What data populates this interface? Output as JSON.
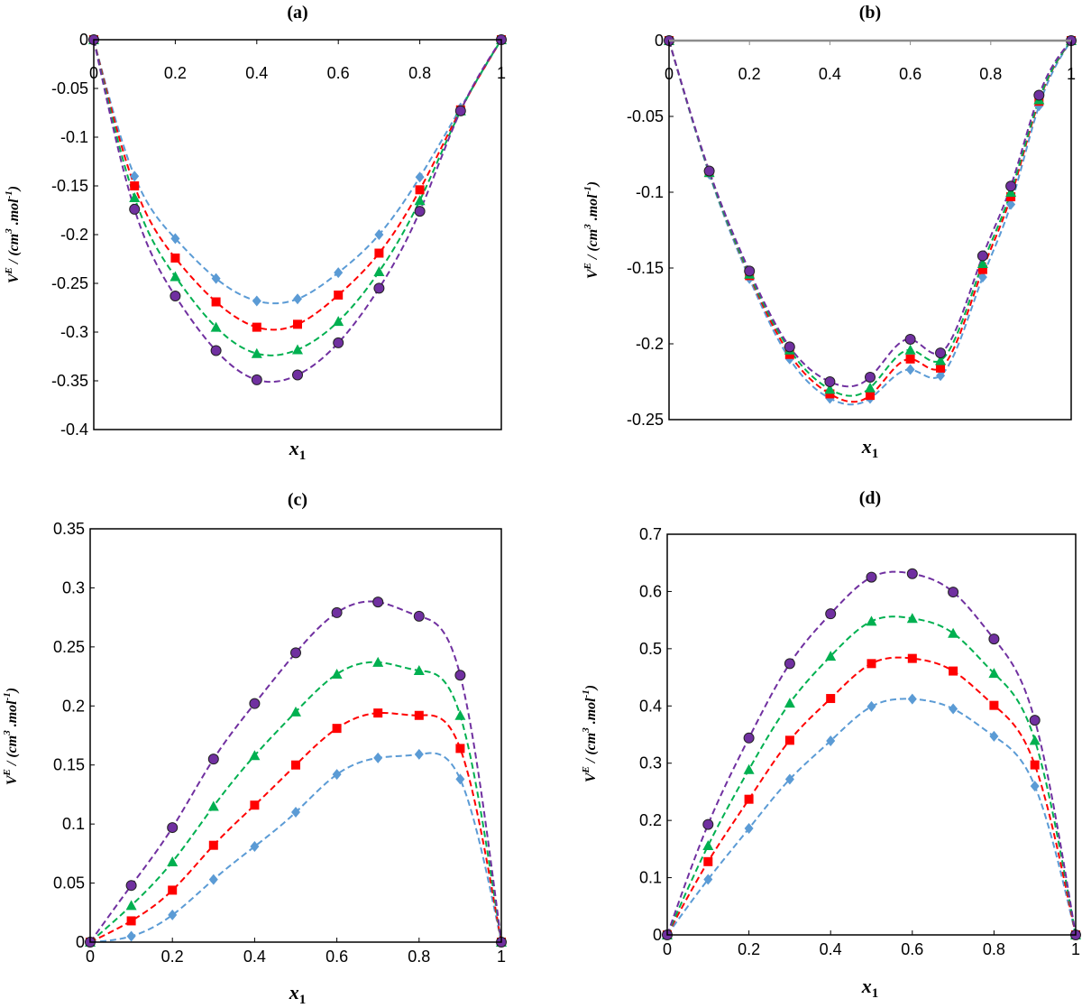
{
  "chart_data": [
    {
      "panel": "(a)",
      "type": "scatter",
      "xlabel": "x1",
      "ylabel": "VE / (cm3 .mol-1)",
      "xlim": [
        0,
        1
      ],
      "ylim": [
        -0.4,
        0
      ],
      "xticks": [
        "0",
        "0.2",
        "0.4",
        "0.6",
        "0.8",
        "1"
      ],
      "yticks": [
        "0",
        "-0.05",
        "-0.1",
        "-0.15",
        "-0.2",
        "-0.25",
        "-0.3",
        "-0.35",
        "-0.4"
      ],
      "grid": false,
      "series": [
        {
          "marker": "diamond",
          "color": "#5B9BD5",
          "x": [
            0,
            0.1,
            0.2,
            0.3,
            0.4,
            0.5,
            0.6,
            0.7,
            0.8,
            0.9,
            1
          ],
          "y": [
            0,
            -0.14,
            -0.204,
            -0.245,
            -0.268,
            -0.266,
            -0.239,
            -0.2,
            -0.141,
            -0.07,
            0
          ]
        },
        {
          "marker": "square",
          "color": "#FF0000",
          "x": [
            0,
            0.1,
            0.2,
            0.3,
            0.4,
            0.5,
            0.6,
            0.7,
            0.8,
            0.9,
            1
          ],
          "y": [
            0,
            -0.15,
            -0.224,
            -0.269,
            -0.295,
            -0.292,
            -0.262,
            -0.219,
            -0.154,
            -0.072,
            0
          ]
        },
        {
          "marker": "triangle",
          "color": "#00B050",
          "x": [
            0,
            0.1,
            0.2,
            0.3,
            0.4,
            0.5,
            0.6,
            0.7,
            0.8,
            0.9,
            1
          ],
          "y": [
            0,
            -0.162,
            -0.243,
            -0.295,
            -0.322,
            -0.318,
            -0.289,
            -0.238,
            -0.165,
            -0.073,
            0
          ]
        },
        {
          "marker": "circle",
          "color": "#7030A0",
          "x": [
            0,
            0.1,
            0.2,
            0.3,
            0.4,
            0.5,
            0.6,
            0.7,
            0.8,
            0.9,
            1
          ],
          "y": [
            0,
            -0.174,
            -0.263,
            -0.319,
            -0.349,
            -0.344,
            -0.311,
            -0.255,
            -0.176,
            -0.073,
            0
          ]
        }
      ]
    },
    {
      "panel": "(b)",
      "type": "scatter",
      "xlabel": "x1",
      "ylabel": "VE / (cm3 .mol-1)",
      "xlim": [
        0,
        1
      ],
      "ylim": [
        -0.25,
        0
      ],
      "xticks": [
        "0",
        "0.2",
        "0.4",
        "0.6",
        "0.8",
        "1"
      ],
      "yticks": [
        "0",
        "-0.05",
        "-0.1",
        "-0.15",
        "-0.2",
        "-0.25"
      ],
      "grid": false,
      "series": [
        {
          "marker": "diamond",
          "color": "#5B9BD5",
          "x": [
            0,
            0.1,
            0.2,
            0.3,
            0.4,
            0.5,
            0.6,
            0.675,
            0.78,
            0.85,
            0.92,
            1
          ],
          "y": [
            0,
            -0.088,
            -0.157,
            -0.21,
            -0.236,
            -0.236,
            -0.217,
            -0.221,
            -0.156,
            -0.108,
            -0.043,
            0
          ]
        },
        {
          "marker": "square",
          "color": "#FF0000",
          "x": [
            0,
            0.1,
            0.2,
            0.3,
            0.4,
            0.5,
            0.6,
            0.675,
            0.78,
            0.85,
            0.92,
            1
          ],
          "y": [
            0,
            -0.087,
            -0.155,
            -0.207,
            -0.233,
            -0.234,
            -0.21,
            -0.216,
            -0.151,
            -0.103,
            -0.04,
            0
          ]
        },
        {
          "marker": "triangle",
          "color": "#00B050",
          "x": [
            0,
            0.1,
            0.2,
            0.3,
            0.4,
            0.5,
            0.6,
            0.675,
            0.78,
            0.85,
            0.92,
            1
          ],
          "y": [
            0,
            -0.087,
            -0.154,
            -0.204,
            -0.23,
            -0.229,
            -0.204,
            -0.211,
            -0.147,
            -0.1,
            -0.039,
            0
          ]
        },
        {
          "marker": "circle",
          "color": "#7030A0",
          "x": [
            0,
            0.1,
            0.2,
            0.3,
            0.4,
            0.5,
            0.6,
            0.675,
            0.78,
            0.85,
            0.92,
            1
          ],
          "y": [
            0,
            -0.086,
            -0.152,
            -0.202,
            -0.225,
            -0.222,
            -0.197,
            -0.206,
            -0.142,
            -0.096,
            -0.036,
            0
          ]
        }
      ]
    },
    {
      "panel": "(c)",
      "type": "scatter",
      "xlabel": "x1",
      "ylabel": "VE / (cm3 .mol-1)",
      "xlim": [
        0,
        1
      ],
      "ylim": [
        0,
        0.35
      ],
      "xticks": [
        "0",
        "0.2",
        "0.4",
        "0.6",
        "0.8",
        "1"
      ],
      "yticks": [
        "0",
        "0.05",
        "0.1",
        "0.15",
        "0.2",
        "0.25",
        "0.3",
        "0.35"
      ],
      "grid": false,
      "series": [
        {
          "marker": "diamond",
          "color": "#5B9BD5",
          "x": [
            0,
            0.1,
            0.2,
            0.3,
            0.4,
            0.5,
            0.6,
            0.7,
            0.8,
            0.9,
            1
          ],
          "y": [
            0,
            0.005,
            0.023,
            0.053,
            0.081,
            0.11,
            0.142,
            0.156,
            0.159,
            0.138,
            0
          ]
        },
        {
          "marker": "square",
          "color": "#FF0000",
          "x": [
            0,
            0.1,
            0.2,
            0.3,
            0.4,
            0.5,
            0.6,
            0.7,
            0.8,
            0.9,
            1
          ],
          "y": [
            0,
            0.018,
            0.044,
            0.082,
            0.116,
            0.15,
            0.181,
            0.194,
            0.192,
            0.164,
            0
          ]
        },
        {
          "marker": "triangle",
          "color": "#00B050",
          "x": [
            0,
            0.1,
            0.2,
            0.3,
            0.4,
            0.5,
            0.6,
            0.7,
            0.8,
            0.9,
            1
          ],
          "y": [
            0,
            0.031,
            0.068,
            0.115,
            0.158,
            0.195,
            0.227,
            0.237,
            0.23,
            0.192,
            0
          ]
        },
        {
          "marker": "circle",
          "color": "#7030A0",
          "x": [
            0,
            0.1,
            0.2,
            0.3,
            0.4,
            0.5,
            0.6,
            0.7,
            0.8,
            0.9,
            1
          ],
          "y": [
            0,
            0.048,
            0.097,
            0.155,
            0.202,
            0.245,
            0.279,
            0.288,
            0.276,
            0.226,
            0
          ]
        }
      ]
    },
    {
      "panel": "(d)",
      "type": "scatter",
      "xlabel": "x1",
      "ylabel": "VE / (cm3 .mol-1)",
      "xlim": [
        0,
        1
      ],
      "ylim": [
        0,
        0.7
      ],
      "xticks": [
        "0",
        "0.2",
        "0.4",
        "0.6",
        "0.8",
        "1"
      ],
      "yticks": [
        "0",
        "0.1",
        "0.2",
        "0.3",
        "0.4",
        "0.5",
        "0.6",
        "0.7"
      ],
      "grid": false,
      "series": [
        {
          "marker": "diamond",
          "color": "#5B9BD5",
          "x": [
            0,
            0.1,
            0.2,
            0.3,
            0.4,
            0.5,
            0.6,
            0.7,
            0.8,
            0.9,
            1
          ],
          "y": [
            0,
            0.097,
            0.186,
            0.272,
            0.339,
            0.399,
            0.412,
            0.395,
            0.347,
            0.26,
            0
          ]
        },
        {
          "marker": "square",
          "color": "#FF0000",
          "x": [
            0,
            0.1,
            0.2,
            0.3,
            0.4,
            0.5,
            0.6,
            0.7,
            0.8,
            0.9,
            1
          ],
          "y": [
            0,
            0.128,
            0.237,
            0.34,
            0.413,
            0.474,
            0.483,
            0.461,
            0.401,
            0.297,
            0
          ]
        },
        {
          "marker": "triangle",
          "color": "#00B050",
          "x": [
            0,
            0.1,
            0.2,
            0.3,
            0.4,
            0.5,
            0.6,
            0.7,
            0.8,
            0.9,
            1
          ],
          "y": [
            0,
            0.156,
            0.289,
            0.405,
            0.487,
            0.548,
            0.553,
            0.527,
            0.457,
            0.34,
            0
          ]
        },
        {
          "marker": "circle",
          "color": "#7030A0",
          "x": [
            0,
            0.1,
            0.2,
            0.3,
            0.4,
            0.5,
            0.6,
            0.7,
            0.8,
            0.9,
            1
          ],
          "y": [
            0,
            0.193,
            0.344,
            0.474,
            0.561,
            0.625,
            0.631,
            0.599,
            0.517,
            0.375,
            0
          ]
        }
      ]
    }
  ]
}
